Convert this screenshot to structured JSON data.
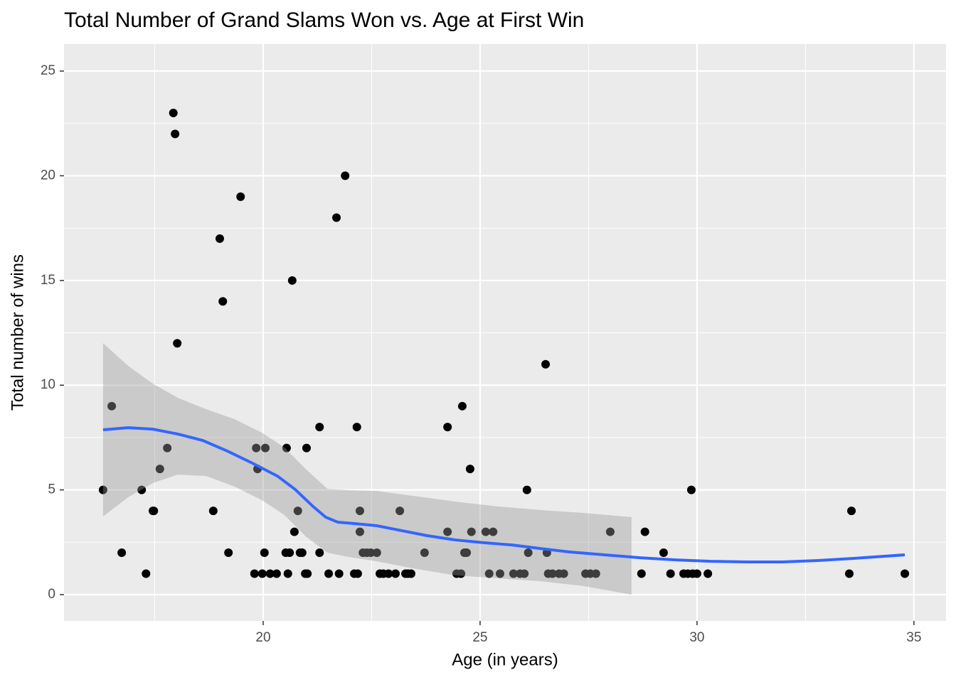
{
  "chart_data": {
    "type": "scatter",
    "title": "Total Number of Grand Slams Won vs. Age at First Win",
    "x_label": "Age (in years)",
    "y_label": "Total number of wins",
    "x": [
      16.31,
      16.51,
      16.74,
      17.2,
      17.3,
      17.46,
      17.48,
      17.62,
      17.79,
      17.93,
      17.97,
      18.02,
      18.85,
      19.0,
      19.07,
      19.2,
      19.48,
      19.8,
      19.84,
      19.87,
      19.98,
      20.03,
      20.05,
      20.16,
      20.31,
      20.54,
      20.52,
      20.57,
      20.61,
      20.67,
      20.72,
      20.8,
      20.85,
      20.9,
      20.97,
      21.02,
      21.0,
      21.3,
      21.3,
      21.51,
      21.69,
      21.75,
      21.89,
      22.1,
      22.18,
      22.16,
      22.23,
      22.23,
      22.3,
      22.39,
      22.48,
      22.62,
      22.69,
      22.77,
      22.89,
      23.05,
      23.15,
      23.28,
      23.34,
      23.41,
      23.72,
      24.25,
      24.25,
      24.46,
      24.56,
      24.59,
      24.64,
      24.69,
      24.77,
      24.8,
      25.13,
      25.3,
      25.21,
      25.46,
      25.77,
      25.92,
      26.02,
      26.08,
      26.11,
      26.51,
      26.54,
      26.57,
      26.67,
      26.82,
      26.93,
      27.43,
      27.54,
      27.67,
      28.0,
      28.72,
      28.8,
      29.23,
      29.39,
      29.69,
      29.79,
      29.87,
      29.9,
      30.0,
      30.25,
      33.51,
      33.56,
      34.79
    ],
    "values": [
      5,
      9,
      2,
      5,
      1,
      4,
      4,
      6,
      7,
      23,
      22,
      12,
      4,
      17,
      14,
      2,
      19,
      1,
      7,
      6,
      1,
      2,
      7,
      1,
      1,
      7,
      2,
      1,
      2,
      15,
      3,
      4,
      2,
      2,
      1,
      1,
      7,
      8,
      2,
      1,
      18,
      1,
      20,
      1,
      1,
      8,
      4,
      3,
      2,
      2,
      2,
      2,
      1,
      1,
      1,
      1,
      4,
      1,
      1,
      1,
      2,
      8,
      3,
      1,
      1,
      9,
      2,
      2,
      6,
      3,
      3,
      3,
      1,
      1,
      1,
      1,
      1,
      5,
      2,
      11,
      2,
      1,
      1,
      1,
      1,
      1,
      1,
      1,
      3,
      1,
      3,
      2,
      1,
      1,
      1,
      5,
      1,
      1,
      1,
      1,
      4,
      1
    ],
    "color": "#000000",
    "smooth": {
      "color": "#3366ff",
      "x": [
        16.31,
        16.89,
        17.46,
        18.03,
        18.61,
        19.18,
        19.75,
        20.33,
        20.74,
        21.15,
        21.44,
        21.72,
        22.13,
        22.62,
        23.11,
        23.77,
        24.43,
        25.08,
        25.74,
        26.39,
        27.05,
        27.87,
        28.69,
        29.51,
        30.33,
        31.15,
        31.97,
        32.79,
        33.61,
        34.79
      ],
      "values": [
        7.87,
        7.97,
        7.9,
        7.67,
        7.36,
        6.85,
        6.28,
        5.66,
        5.02,
        4.21,
        3.7,
        3.46,
        3.39,
        3.29,
        3.09,
        2.82,
        2.61,
        2.48,
        2.37,
        2.2,
        2.04,
        1.9,
        1.76,
        1.66,
        1.59,
        1.56,
        1.56,
        1.63,
        1.73,
        1.9
      ]
    },
    "band": {
      "color": "#999999",
      "x": [
        16.31,
        16.89,
        17.46,
        18.03,
        18.69,
        19.34,
        20.0,
        20.49,
        20.98,
        21.48,
        21.97,
        22.62,
        23.44,
        24.43,
        25.41,
        26.39,
        27.38,
        28.49
      ],
      "upper": [
        12.01,
        10.92,
        10.07,
        9.4,
        8.85,
        8.38,
        7.7,
        7.02,
        6.0,
        5.05,
        4.99,
        4.95,
        4.72,
        4.44,
        4.21,
        4.04,
        3.9,
        3.7
      ],
      "lower": [
        3.73,
        4.65,
        5.33,
        5.73,
        5.66,
        5.16,
        4.48,
        3.8,
        2.78,
        2.0,
        1.8,
        1.59,
        1.26,
        0.92,
        0.78,
        0.64,
        0.41,
        0.0
      ]
    },
    "xlim": [
      15.41,
      35.74
    ],
    "ylim": [
      -1.255,
      26.29
    ],
    "xticks": [
      20,
      25,
      30,
      35
    ],
    "yticks": [
      0,
      5,
      10,
      15,
      20,
      25
    ],
    "xminor": [
      17.5,
      22.5,
      27.5,
      32.5
    ],
    "yminor": [
      2.5,
      7.5,
      12.5,
      17.5,
      22.5
    ],
    "grid": true
  }
}
